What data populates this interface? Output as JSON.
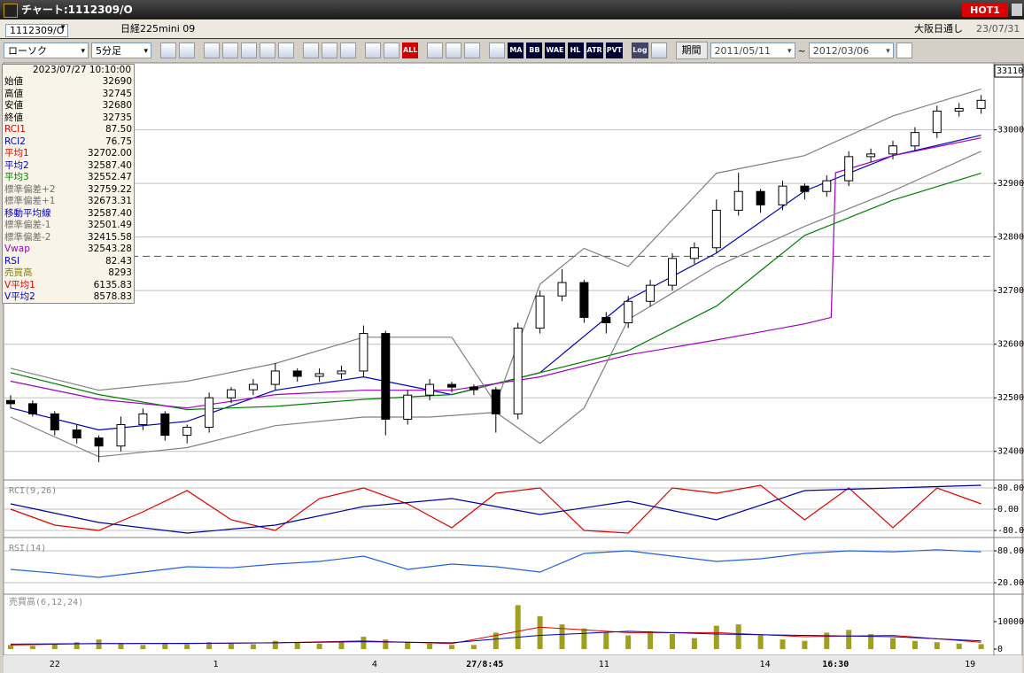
{
  "window": {
    "title": "チャート:1112309/O",
    "badge": "HOT1"
  },
  "header": {
    "symbol": "1112309/O",
    "name": "日経225mini 09",
    "session": "大阪日通し",
    "date": "23/07/31"
  },
  "toolbar": {
    "chart_type": "ローソク",
    "interval": "5分足",
    "all": "ALL",
    "indicators": [
      "MA",
      "BB",
      "WAE",
      "HL",
      "ATR",
      "PVT"
    ],
    "log": "Log",
    "period": "期間",
    "from": "2011/05/11",
    "sep": "~",
    "to": "2012/03/06"
  },
  "info_panel": {
    "datetime": "2023/07/27  10:10:00",
    "rows": [
      {
        "label": "始値",
        "value": "32690",
        "color": "#000000"
      },
      {
        "label": "高値",
        "value": "32745",
        "color": "#000000"
      },
      {
        "label": "安値",
        "value": "32680",
        "color": "#000000"
      },
      {
        "label": "終値",
        "value": "32735",
        "color": "#000000"
      },
      {
        "label": "RCI1",
        "value": "87.50",
        "color": "#e00000"
      },
      {
        "label": "RCI2",
        "value": "76.75",
        "color": "#0000c0"
      },
      {
        "label": "平均1",
        "value": "32702.00",
        "color": "#e00000"
      },
      {
        "label": "平均2",
        "value": "32587.40",
        "color": "#0000c0"
      },
      {
        "label": "平均3",
        "value": "32552.47",
        "color": "#008000"
      },
      {
        "label": "標準偏差+2",
        "value": "32759.22",
        "color": "#707070"
      },
      {
        "label": "標準偏差+1",
        "value": "32673.31",
        "color": "#707070"
      },
      {
        "label": "移動平均線",
        "value": "32587.40",
        "color": "#0000c0"
      },
      {
        "label": "標準偏差-1",
        "value": "32501.49",
        "color": "#707070"
      },
      {
        "label": "標準偏差-2",
        "value": "32415.58",
        "color": "#707070"
      },
      {
        "label": "Vwap",
        "value": "32543.28",
        "color": "#a000c0"
      },
      {
        "label": "RSI",
        "value": "82.43",
        "color": "#0000c0"
      },
      {
        "label": "売買高",
        "value": "8293",
        "color": "#808000"
      },
      {
        "label": "V平均1",
        "value": "6135.83",
        "color": "#e00000"
      },
      {
        "label": "V平均2",
        "value": "8578.83",
        "color": "#0000c0"
      }
    ]
  },
  "chart_data": [
    {
      "type": "candlestick",
      "ylim": [
        32350,
        33120
      ],
      "yticks": [
        32400,
        32500,
        32600,
        32700,
        32800,
        32900,
        33000
      ],
      "last_price": 33110,
      "grid": true,
      "up_color": "#ffffff",
      "down_color": "#000000",
      "open": [
        32495,
        32489,
        32470,
        32440,
        32425,
        32410,
        32450,
        32470,
        32430,
        32445,
        32500,
        32515,
        32525,
        32550,
        32540,
        32545,
        32550,
        32620,
        32460,
        32505,
        32525,
        32520,
        32515,
        32470,
        32630,
        32690,
        32715,
        32650,
        32640,
        32680,
        32710,
        32760,
        32780,
        32850,
        32885,
        32860,
        32895,
        32885,
        32905,
        32950,
        32955,
        32970,
        32995,
        33035,
        33040
      ],
      "high": [
        32505,
        32495,
        32475,
        32450,
        32430,
        32465,
        32480,
        32475,
        32450,
        32510,
        32520,
        32535,
        32565,
        32555,
        32555,
        32560,
        32635,
        32625,
        32515,
        32535,
        32530,
        32525,
        32520,
        32640,
        32700,
        32740,
        32720,
        32660,
        32690,
        32720,
        32770,
        32790,
        32870,
        32920,
        32890,
        32905,
        32900,
        32915,
        32960,
        32965,
        32980,
        33005,
        33045,
        33050,
        33065
      ],
      "low": [
        32480,
        32465,
        32430,
        32415,
        32380,
        32400,
        32440,
        32420,
        32415,
        32435,
        32490,
        32505,
        32515,
        32530,
        32530,
        32535,
        32540,
        32430,
        32450,
        32495,
        32510,
        32505,
        32435,
        32460,
        32620,
        32680,
        32640,
        32620,
        32630,
        32670,
        32700,
        32750,
        32770,
        32840,
        32845,
        32850,
        32870,
        32875,
        32895,
        32940,
        32945,
        32960,
        32985,
        33025,
        33030
      ],
      "close": [
        32489,
        32470,
        32440,
        32425,
        32410,
        32450,
        32470,
        32430,
        32445,
        32500,
        32515,
        32525,
        32550,
        32540,
        32545,
        32550,
        32620,
        32460,
        32505,
        32525,
        32520,
        32515,
        32470,
        32630,
        32690,
        32715,
        32650,
        32640,
        32680,
        32710,
        32760,
        32780,
        32850,
        32885,
        32860,
        32895,
        32885,
        32905,
        32950,
        32955,
        32970,
        32995,
        33035,
        33040,
        33055
      ],
      "overlays": [
        {
          "color": "#0000c0",
          "x": [
            0,
            4,
            8,
            12,
            16,
            20,
            24,
            28,
            32,
            36,
            40,
            44
          ],
          "values": [
            32481,
            32440,
            32456,
            32514,
            32539,
            32506,
            32547,
            32683,
            32770,
            32886,
            32952,
            32990
          ]
        },
        {
          "color": "#008000",
          "x": [
            0,
            4,
            8,
            12,
            16,
            20,
            24,
            28,
            32,
            36,
            40,
            44
          ],
          "values": [
            32547,
            32506,
            32478,
            32484,
            32497,
            32506,
            32547,
            32588,
            32671,
            32803,
            32869,
            32919
          ]
        },
        {
          "color": "#a000c0",
          "x": [
            0,
            4,
            8,
            12,
            16,
            20,
            24,
            28,
            32,
            36,
            37.2,
            37.4,
            40,
            44
          ],
          "values": [
            32531,
            32497,
            32481,
            32506,
            32514,
            32514,
            32539,
            32580,
            32608,
            32638,
            32650,
            32920,
            32952,
            32985
          ]
        },
        {
          "color": "#808080",
          "x": [
            0,
            4,
            8,
            12,
            16,
            20,
            22,
            24,
            26,
            28,
            32,
            36,
            40,
            44
          ],
          "values": [
            32555,
            32514,
            32531,
            32564,
            32613,
            32613,
            32489,
            32712,
            32779,
            32745,
            32919,
            32952,
            33026,
            33076
          ]
        },
        {
          "color": "#808080",
          "x": [
            0,
            4,
            8,
            12,
            16,
            19,
            22,
            24,
            26,
            28,
            32,
            36,
            40,
            44
          ],
          "values": [
            32464,
            32390,
            32407,
            32448,
            32464,
            32464,
            32473,
            32415,
            32481,
            32646,
            32745,
            32820,
            32886,
            32960
          ]
        }
      ],
      "hline": {
        "value": 32764,
        "color": "#2e8b2e"
      },
      "x_labels": [
        {
          "text": "22",
          "x": 2,
          "bold": false
        },
        {
          "text": "1",
          "x": 9.3,
          "bold": false
        },
        {
          "text": "4",
          "x": 16.5,
          "bold": false
        },
        {
          "text": "27/8:45",
          "x": 21.5,
          "bold": true
        },
        {
          "text": "11",
          "x": 26.9,
          "bold": false
        },
        {
          "text": "14",
          "x": 34.2,
          "bold": false
        },
        {
          "text": "16:30",
          "x": 37.4,
          "bold": true
        },
        {
          "text": "19",
          "x": 43.5,
          "bold": false
        }
      ]
    },
    {
      "type": "line",
      "title": "RCI(9,26)",
      "ylim": [
        -100,
        100
      ],
      "grid": true,
      "yticks": [
        {
          "value": 80,
          "label": "80.00"
        },
        {
          "value": 0,
          "label": "0.00"
        },
        {
          "value": -80,
          "label": "-80.0"
        }
      ],
      "series": [
        {
          "color": "#e00000",
          "x": [
            0,
            2,
            4,
            6,
            8,
            10,
            12,
            14,
            16,
            18,
            20,
            22,
            24,
            26,
            28,
            30,
            32,
            34,
            36,
            38,
            40,
            42,
            44
          ],
          "values": [
            0,
            -60,
            -80,
            -10,
            70,
            -40,
            -80,
            40,
            80,
            20,
            -70,
            60,
            80,
            -80,
            -90,
            80,
            60,
            90,
            -40,
            80,
            -70,
            80,
            20
          ]
        },
        {
          "color": "#0000a0",
          "x": [
            0,
            4,
            8,
            12,
            16,
            20,
            24,
            28,
            32,
            36,
            40,
            44
          ],
          "values": [
            20,
            -50,
            -90,
            -60,
            10,
            40,
            -20,
            30,
            -40,
            70,
            80,
            90
          ]
        }
      ]
    },
    {
      "type": "line",
      "title": "RSI(14)",
      "ylim": [
        0,
        100
      ],
      "grid": true,
      "yticks": [
        {
          "value": 80,
          "label": "80.00"
        },
        {
          "value": 20,
          "label": "20.00"
        }
      ],
      "series": [
        {
          "color": "#2060e0",
          "x": [
            0,
            2,
            4,
            6,
            8,
            10,
            12,
            14,
            16,
            18,
            20,
            22,
            24,
            26,
            28,
            30,
            32,
            34,
            36,
            38,
            40,
            42,
            44
          ],
          "values": [
            45,
            38,
            30,
            40,
            50,
            48,
            55,
            60,
            70,
            45,
            55,
            50,
            40,
            75,
            80,
            70,
            60,
            65,
            75,
            80,
            78,
            82,
            78
          ]
        }
      ]
    },
    {
      "type": "bar",
      "title": "売買高(6,12,24)",
      "ylim": [
        0,
        20000
      ],
      "grid": false,
      "yticks": [
        0,
        10000
      ],
      "color": "#a0a020",
      "values": [
        1500,
        1200,
        1800,
        2500,
        3500,
        2000,
        1500,
        2200,
        1800,
        2500,
        2000,
        1800,
        3000,
        2500,
        2000,
        2500,
        4500,
        3500,
        2500,
        2000,
        1500,
        1500,
        6000,
        16000,
        12000,
        9000,
        7500,
        6000,
        5000,
        6500,
        5500,
        4000,
        8500,
        9000,
        5000,
        3500,
        3000,
        6000,
        7000,
        5500,
        4000,
        3000,
        2500,
        2000,
        1800
      ],
      "series": [
        {
          "color": "#e00000",
          "x": [
            0,
            4,
            8,
            12,
            16,
            20,
            24,
            28,
            32,
            36,
            40,
            44
          ],
          "values": [
            1500,
            2000,
            2000,
            2300,
            3000,
            2000,
            8000,
            6000,
            6000,
            4500,
            5000,
            2500
          ]
        },
        {
          "color": "#0000c0",
          "x": [
            0,
            4,
            8,
            12,
            16,
            20,
            24,
            28,
            32,
            36,
            40,
            44
          ],
          "values": [
            1800,
            2000,
            2100,
            2300,
            2700,
            2300,
            5000,
            6500,
            5500,
            5000,
            4500,
            3000
          ]
        }
      ]
    }
  ]
}
